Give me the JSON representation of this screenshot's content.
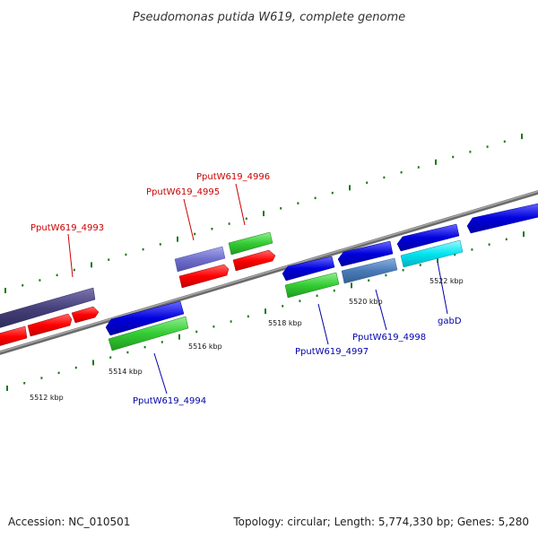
{
  "title": "Pseudomonas putida W619, complete genome",
  "footer": {
    "accession": "Accession: NC_010501",
    "summary": "Topology: circular; Length: 5,774,330 bp; Genes: 5,280"
  },
  "scale_labels": [
    "5512 kbp",
    "5514 kbp",
    "5516 kbp",
    "5518 kbp",
    "5520 kbp",
    "5522 kbp"
  ],
  "gene_labels": {
    "g4993": "PputW619_4993",
    "g4995": "PputW619_4995",
    "g4996": "PputW619_4996",
    "g4994": "PputW619_4994",
    "g4997": "PputW619_4997",
    "g4998": "PputW619_4998",
    "gabD": "gabD"
  },
  "colors": {
    "forward_label": "#cc0000",
    "reverse_label": "#0000aa",
    "backbone": "#8a8a8a",
    "tick": "#1a7a1a",
    "cds": "#ff0000",
    "rna": "#33cc33",
    "gene_blue": "#0000dd",
    "gene_slate": "#7070cc",
    "gene_darkslate": "#45407a",
    "gene_steel": "#4a7ab8",
    "gene_cyan": "#00e5f0"
  }
}
